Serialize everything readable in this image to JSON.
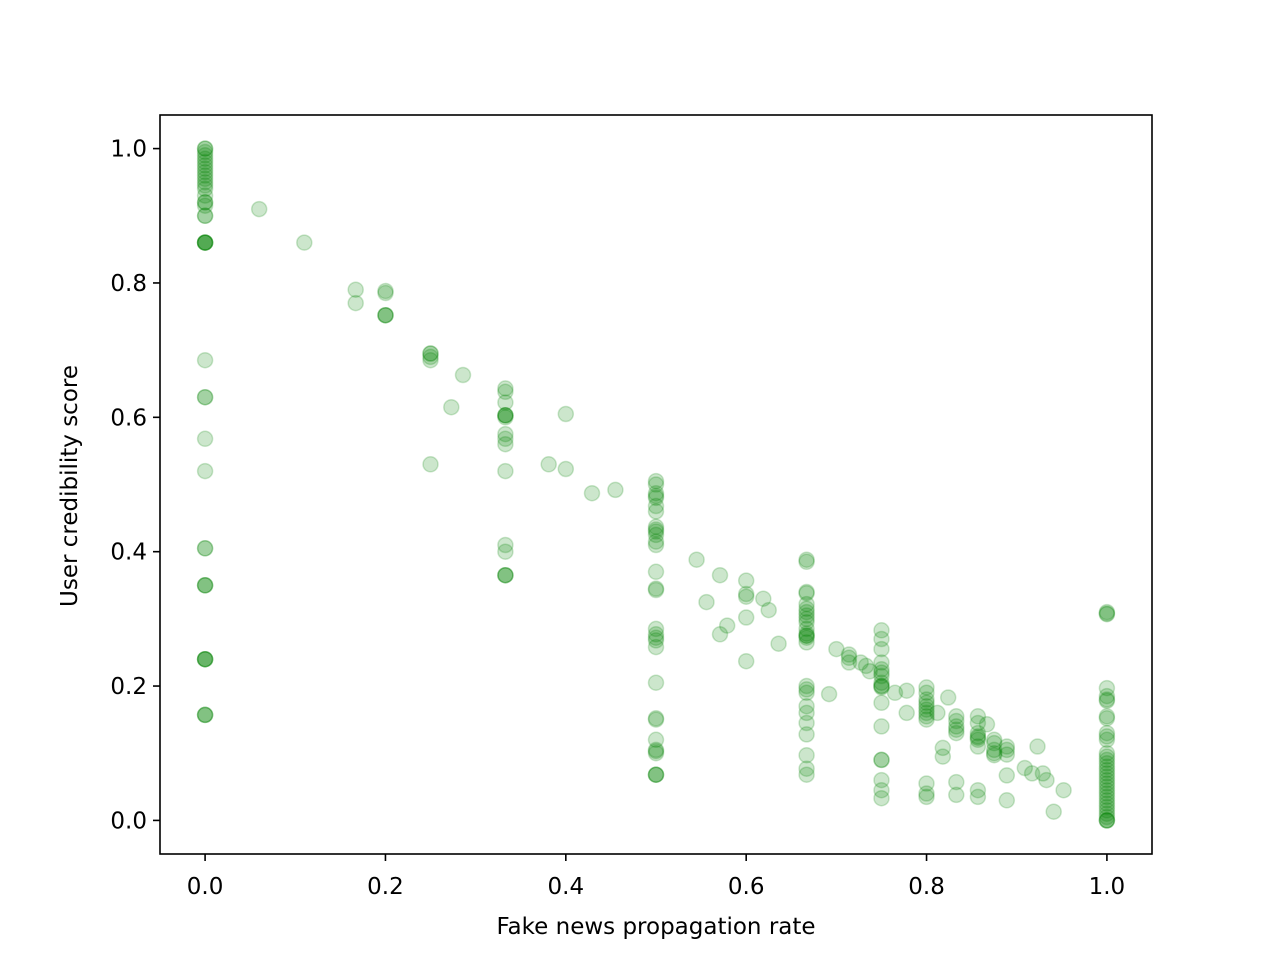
{
  "chart_data": {
    "type": "scatter",
    "title": "",
    "xlabel": "Fake news propagation rate",
    "ylabel": "User credibility score",
    "xlim": [
      -0.05,
      1.05
    ],
    "ylim": [
      -0.05,
      1.05
    ],
    "xticks": [
      0.0,
      0.2,
      0.4,
      0.6,
      0.8,
      1.0
    ],
    "yticks": [
      0.0,
      0.2,
      0.4,
      0.6,
      0.8,
      1.0
    ],
    "xtick_labels": [
      "0.0",
      "0.2",
      "0.4",
      "0.6",
      "0.8",
      "1.0"
    ],
    "ytick_labels": [
      "0.0",
      "0.2",
      "0.4",
      "0.6",
      "0.8",
      "1.0"
    ],
    "grid": false,
    "legend": "none",
    "marker_color": "#008000",
    "marker_alpha": 0.2,
    "series": [
      {
        "points": [
          [
            0,
            1.0
          ],
          [
            0,
            1.0
          ],
          [
            0,
            0.995
          ],
          [
            0,
            0.99
          ],
          [
            0,
            0.985
          ],
          [
            0,
            0.98
          ],
          [
            0,
            0.975
          ],
          [
            0,
            0.97
          ],
          [
            0,
            0.965
          ],
          [
            0,
            0.96
          ],
          [
            0,
            0.955
          ],
          [
            0,
            0.95
          ],
          [
            0,
            0.945
          ],
          [
            0,
            0.94
          ],
          [
            0,
            0.93
          ],
          [
            0,
            0.92
          ],
          [
            0,
            0.92
          ],
          [
            0,
            0.915
          ],
          [
            0,
            0.9
          ],
          [
            0,
            0.9
          ],
          [
            0,
            0.86
          ],
          [
            0,
            0.86
          ],
          [
            0,
            0.86
          ],
          [
            0,
            0.86
          ],
          [
            0,
            0.86
          ],
          [
            0,
            0.685
          ],
          [
            0,
            0.63
          ],
          [
            0,
            0.63
          ],
          [
            0,
            0.568
          ],
          [
            0,
            0.52
          ],
          [
            0,
            0.405
          ],
          [
            0,
            0.405
          ],
          [
            0,
            0.35
          ],
          [
            0,
            0.35
          ],
          [
            0,
            0.35
          ],
          [
            0,
            0.24
          ],
          [
            0,
            0.24
          ],
          [
            0,
            0.24
          ],
          [
            0,
            0.24
          ],
          [
            0,
            0.157
          ],
          [
            0,
            0.157
          ],
          [
            0,
            0.157
          ],
          [
            0.06,
            0.91
          ],
          [
            0.11,
            0.86
          ],
          [
            0.167,
            0.79
          ],
          [
            0.167,
            0.77
          ],
          [
            0.2,
            0.788
          ],
          [
            0.2,
            0.785
          ],
          [
            0.2,
            0.752
          ],
          [
            0.2,
            0.752
          ],
          [
            0.2,
            0.752
          ],
          [
            0.25,
            0.695
          ],
          [
            0.25,
            0.695
          ],
          [
            0.25,
            0.69
          ],
          [
            0.25,
            0.685
          ],
          [
            0.25,
            0.53
          ],
          [
            0.273,
            0.615
          ],
          [
            0.286,
            0.663
          ],
          [
            0.333,
            0.643
          ],
          [
            0.333,
            0.638
          ],
          [
            0.333,
            0.622
          ],
          [
            0.333,
            0.603
          ],
          [
            0.333,
            0.603
          ],
          [
            0.333,
            0.603
          ],
          [
            0.333,
            0.6
          ],
          [
            0.333,
            0.575
          ],
          [
            0.333,
            0.568
          ],
          [
            0.333,
            0.56
          ],
          [
            0.333,
            0.52
          ],
          [
            0.333,
            0.41
          ],
          [
            0.333,
            0.4
          ],
          [
            0.333,
            0.365
          ],
          [
            0.333,
            0.365
          ],
          [
            0.333,
            0.365
          ],
          [
            0.381,
            0.53
          ],
          [
            0.4,
            0.605
          ],
          [
            0.4,
            0.523
          ],
          [
            0.429,
            0.487
          ],
          [
            0.455,
            0.492
          ],
          [
            0.5,
            0.505
          ],
          [
            0.5,
            0.5
          ],
          [
            0.5,
            0.487
          ],
          [
            0.5,
            0.483
          ],
          [
            0.5,
            0.48
          ],
          [
            0.5,
            0.468
          ],
          [
            0.5,
            0.46
          ],
          [
            0.5,
            0.437
          ],
          [
            0.5,
            0.433
          ],
          [
            0.5,
            0.43
          ],
          [
            0.5,
            0.425
          ],
          [
            0.5,
            0.415
          ],
          [
            0.5,
            0.41
          ],
          [
            0.5,
            0.37
          ],
          [
            0.5,
            0.345
          ],
          [
            0.5,
            0.343
          ],
          [
            0.5,
            0.285
          ],
          [
            0.5,
            0.277
          ],
          [
            0.5,
            0.272
          ],
          [
            0.5,
            0.268
          ],
          [
            0.5,
            0.258
          ],
          [
            0.5,
            0.205
          ],
          [
            0.5,
            0.152
          ],
          [
            0.5,
            0.15
          ],
          [
            0.5,
            0.12
          ],
          [
            0.5,
            0.105
          ],
          [
            0.5,
            0.103
          ],
          [
            0.5,
            0.1
          ],
          [
            0.5,
            0.068
          ],
          [
            0.5,
            0.068
          ],
          [
            0.5,
            0.068
          ],
          [
            0.545,
            0.388
          ],
          [
            0.556,
            0.325
          ],
          [
            0.571,
            0.365
          ],
          [
            0.571,
            0.277
          ],
          [
            0.579,
            0.29
          ],
          [
            0.6,
            0.357
          ],
          [
            0.6,
            0.337
          ],
          [
            0.6,
            0.333
          ],
          [
            0.6,
            0.302
          ],
          [
            0.6,
            0.237
          ],
          [
            0.619,
            0.33
          ],
          [
            0.625,
            0.313
          ],
          [
            0.636,
            0.263
          ],
          [
            0.667,
            0.388
          ],
          [
            0.667,
            0.385
          ],
          [
            0.667,
            0.34
          ],
          [
            0.667,
            0.338
          ],
          [
            0.667,
            0.322
          ],
          [
            0.667,
            0.315
          ],
          [
            0.667,
            0.31
          ],
          [
            0.667,
            0.305
          ],
          [
            0.667,
            0.3
          ],
          [
            0.667,
            0.295
          ],
          [
            0.667,
            0.285
          ],
          [
            0.667,
            0.278
          ],
          [
            0.667,
            0.275
          ],
          [
            0.667,
            0.275
          ],
          [
            0.667,
            0.272
          ],
          [
            0.667,
            0.265
          ],
          [
            0.667,
            0.2
          ],
          [
            0.667,
            0.195
          ],
          [
            0.667,
            0.19
          ],
          [
            0.667,
            0.17
          ],
          [
            0.667,
            0.16
          ],
          [
            0.667,
            0.145
          ],
          [
            0.667,
            0.128
          ],
          [
            0.667,
            0.097
          ],
          [
            0.667,
            0.077
          ],
          [
            0.667,
            0.068
          ],
          [
            0.692,
            0.188
          ],
          [
            0.7,
            0.255
          ],
          [
            0.714,
            0.247
          ],
          [
            0.714,
            0.242
          ],
          [
            0.714,
            0.235
          ],
          [
            0.727,
            0.235
          ],
          [
            0.733,
            0.23
          ],
          [
            0.737,
            0.222
          ],
          [
            0.75,
            0.283
          ],
          [
            0.75,
            0.27
          ],
          [
            0.75,
            0.255
          ],
          [
            0.75,
            0.235
          ],
          [
            0.75,
            0.225
          ],
          [
            0.75,
            0.22
          ],
          [
            0.75,
            0.215
          ],
          [
            0.75,
            0.205
          ],
          [
            0.75,
            0.2
          ],
          [
            0.75,
            0.2
          ],
          [
            0.75,
            0.198
          ],
          [
            0.75,
            0.175
          ],
          [
            0.75,
            0.14
          ],
          [
            0.75,
            0.09
          ],
          [
            0.75,
            0.09
          ],
          [
            0.75,
            0.06
          ],
          [
            0.75,
            0.045
          ],
          [
            0.75,
            0.033
          ],
          [
            0.765,
            0.19
          ],
          [
            0.778,
            0.193
          ],
          [
            0.778,
            0.16
          ],
          [
            0.8,
            0.198
          ],
          [
            0.8,
            0.19
          ],
          [
            0.8,
            0.18
          ],
          [
            0.8,
            0.175
          ],
          [
            0.8,
            0.17
          ],
          [
            0.8,
            0.165
          ],
          [
            0.8,
            0.16
          ],
          [
            0.8,
            0.155
          ],
          [
            0.8,
            0.15
          ],
          [
            0.8,
            0.055
          ],
          [
            0.8,
            0.04
          ],
          [
            0.8,
            0.035
          ],
          [
            0.812,
            0.16
          ],
          [
            0.818,
            0.108
          ],
          [
            0.818,
            0.095
          ],
          [
            0.824,
            0.183
          ],
          [
            0.833,
            0.155
          ],
          [
            0.833,
            0.148
          ],
          [
            0.833,
            0.14
          ],
          [
            0.833,
            0.135
          ],
          [
            0.833,
            0.13
          ],
          [
            0.833,
            0.057
          ],
          [
            0.833,
            0.038
          ],
          [
            0.857,
            0.155
          ],
          [
            0.857,
            0.145
          ],
          [
            0.857,
            0.13
          ],
          [
            0.857,
            0.125
          ],
          [
            0.857,
            0.123
          ],
          [
            0.857,
            0.12
          ],
          [
            0.857,
            0.11
          ],
          [
            0.857,
            0.045
          ],
          [
            0.857,
            0.035
          ],
          [
            0.867,
            0.143
          ],
          [
            0.875,
            0.12
          ],
          [
            0.875,
            0.115
          ],
          [
            0.875,
            0.105
          ],
          [
            0.875,
            0.1
          ],
          [
            0.875,
            0.097
          ],
          [
            0.889,
            0.11
          ],
          [
            0.889,
            0.105
          ],
          [
            0.889,
            0.098
          ],
          [
            0.889,
            0.067
          ],
          [
            0.889,
            0.03
          ],
          [
            0.909,
            0.078
          ],
          [
            0.917,
            0.07
          ],
          [
            0.923,
            0.11
          ],
          [
            0.929,
            0.07
          ],
          [
            0.933,
            0.06
          ],
          [
            0.941,
            0.013
          ],
          [
            0.952,
            0.045
          ],
          [
            1,
            0.31
          ],
          [
            1,
            0.308
          ],
          [
            1,
            0.307
          ],
          [
            1,
            0.197
          ],
          [
            1,
            0.185
          ],
          [
            1,
            0.18
          ],
          [
            1,
            0.178
          ],
          [
            1,
            0.155
          ],
          [
            1,
            0.152
          ],
          [
            1,
            0.13
          ],
          [
            1,
            0.125
          ],
          [
            1,
            0.12
          ],
          [
            1,
            0.1
          ],
          [
            1,
            0.095
          ],
          [
            1,
            0.09
          ],
          [
            1,
            0.085
          ],
          [
            1,
            0.08
          ],
          [
            1,
            0.075
          ],
          [
            1,
            0.07
          ],
          [
            1,
            0.065
          ],
          [
            1,
            0.06
          ],
          [
            1,
            0.055
          ],
          [
            1,
            0.05
          ],
          [
            1,
            0.045
          ],
          [
            1,
            0.04
          ],
          [
            1,
            0.035
          ],
          [
            1,
            0.03
          ],
          [
            1,
            0.025
          ],
          [
            1,
            0.02
          ],
          [
            1,
            0.015
          ],
          [
            1,
            0.01
          ],
          [
            1,
            0.005
          ],
          [
            1,
            0.0
          ],
          [
            1,
            0.0
          ],
          [
            1,
            0.0
          ]
        ]
      }
    ]
  }
}
